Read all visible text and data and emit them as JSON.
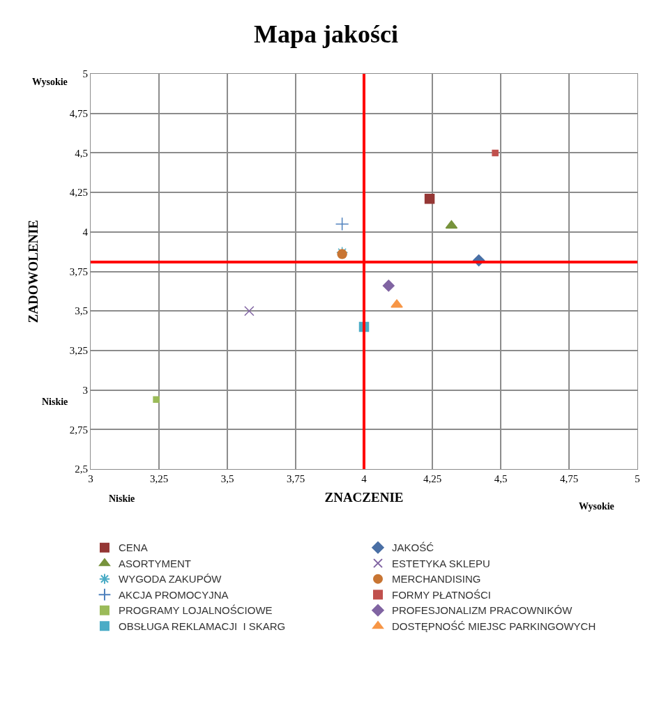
{
  "chart_data": {
    "type": "scatter",
    "title": "Mapa jakości",
    "xlabel": "ZNACZENIE",
    "ylabel": "ZADOWOLENIE",
    "annotations": [
      "Wysokie",
      "Niskie",
      "Niskie",
      "Wysokie"
    ],
    "xlim": [
      3,
      5
    ],
    "ylim": [
      2.5,
      5
    ],
    "xticks": [
      3,
      {
        "value": 3.25,
        "label": "3,25"
      },
      {
        "value": 3.5,
        "label": "3,5"
      },
      {
        "value": 3.75,
        "label": "3,75"
      },
      4,
      {
        "value": 4.25,
        "label": "4,25"
      },
      {
        "value": 4.5,
        "label": "4,5"
      },
      {
        "value": 4.75,
        "label": "4,75"
      },
      5
    ],
    "yticks": [
      {
        "value": 2.5,
        "label": "2,5"
      },
      {
        "value": 2.75,
        "label": "2,75"
      },
      3,
      {
        "value": 3.25,
        "label": "3,25"
      },
      {
        "value": 3.5,
        "label": "3,5"
      },
      {
        "value": 3.75,
        "label": "3,75"
      },
      4,
      {
        "value": 4.25,
        "label": "4,25"
      },
      {
        "value": 4.5,
        "label": "4,5"
      },
      {
        "value": 4.75,
        "label": "4,75"
      },
      5
    ],
    "grid": true,
    "legend": "bottom",
    "ref_lines": [
      {
        "axis": "x",
        "value": 4,
        "color": "#ff0000"
      },
      {
        "axis": "y",
        "value": 3.81,
        "color": "#ff0000"
      }
    ],
    "series": [
      {
        "name": "CENA",
        "color": "#953735",
        "marker": "square",
        "x": [
          4.24
        ],
        "values": [
          4.21
        ]
      },
      {
        "name": "JAKOŚĆ",
        "color": "#4a6fa5",
        "marker": "diamond",
        "x": [
          4.42
        ],
        "values": [
          3.82
        ]
      },
      {
        "name": "ASORTYMENT",
        "color": "#77933c",
        "marker": "triangle",
        "x": [
          4.32
        ],
        "values": [
          4.04
        ]
      },
      {
        "name": "ESTETYKA SKLEPU",
        "color": "#8064a2",
        "marker": "cross",
        "x": [
          3.58
        ],
        "values": [
          3.5
        ]
      },
      {
        "name": "WYGODA ZAKUPÓW",
        "color": "#4bacc6",
        "marker": "cross",
        "x": [
          3.92
        ],
        "values": [
          3.87
        ]
      },
      {
        "name": "MERCHANDISING",
        "color": "#c87533",
        "marker": "circle",
        "x": [
          3.92
        ],
        "values": [
          3.86
        ]
      },
      {
        "name": "AKCJA PROMOCYJNA",
        "color": "#4f81bd",
        "marker": "cross",
        "x": [
          3.92
        ],
        "values": [
          4.05
        ]
      },
      {
        "name": "FORMY PŁATNOŚCI",
        "color": "#c0504d",
        "marker": "square",
        "x": [
          4.48
        ],
        "values": [
          4.5
        ]
      },
      {
        "name": "PROGRAMY LOJALNOŚCIOWE",
        "color": "#9bbb59",
        "marker": "square",
        "x": [
          3.24
        ],
        "values": [
          2.94
        ]
      },
      {
        "name": "PROFESJONALIZM PRACOWNIKÓW",
        "color": "#8064a2",
        "marker": "diamond",
        "x": [
          4.09
        ],
        "values": [
          3.66
        ]
      },
      {
        "name": "OBSŁUGA REKLAMACJI  I SKARG",
        "color": "#4bacc6",
        "marker": "square",
        "x": [
          4.0
        ],
        "values": [
          3.4
        ]
      },
      {
        "name": "DOSTĘPNOŚĆ MIEJSC PARKINGOWYCH",
        "color": "#f79646",
        "marker": "triangle",
        "x": [
          4.12
        ],
        "values": [
          3.54
        ]
      }
    ]
  }
}
